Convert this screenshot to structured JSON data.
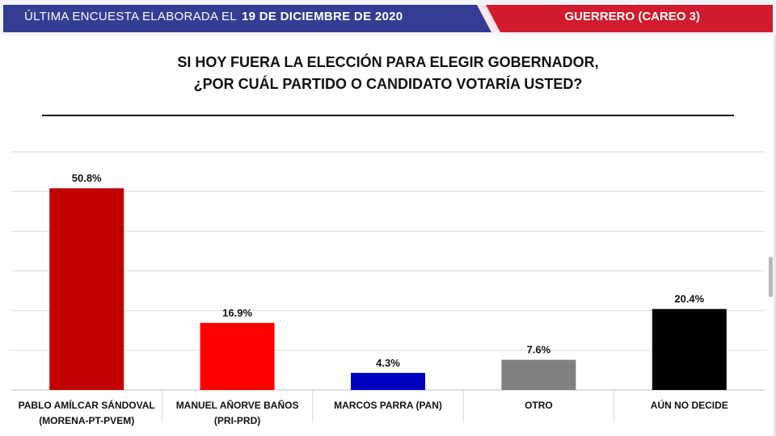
{
  "header": {
    "prefix": "ÚLTIMA ENCUESTA ELABORADA EL",
    "date": "19 DE DICIEMBRE DE 2020",
    "region": "GUERRERO (CAREO 3)",
    "colors": {
      "blue": "#343d94",
      "red": "#d21b2c"
    }
  },
  "title": {
    "line1": "SI HOY FUERA LA ELECCIÓN PARA ELEGIR GOBERNADOR,",
    "line2": "¿POR CUÁL PARTIDO O CANDIDATO VOTARÍA USTED?"
  },
  "chart_data": {
    "type": "bar",
    "categories": [
      [
        "PABLO AMÍLCAR SÁNDOVAL",
        "(MORENA-PT-PVEM)"
      ],
      [
        "MANUEL AÑORVE BAÑOS",
        "(PRI-PRD)"
      ],
      [
        "MARCOS PARRA (PAN)"
      ],
      [
        "OTRO"
      ],
      [
        "AÚN NO DECIDE"
      ]
    ],
    "values": [
      50.8,
      16.9,
      4.3,
      7.6,
      20.4
    ],
    "value_labels": [
      "50.8%",
      "16.9%",
      "4.3%",
      "7.6%",
      "20.4%"
    ],
    "colors": [
      "#c00000",
      "#ff0000",
      "#0000c0",
      "#808080",
      "#000000"
    ],
    "ylim": [
      0,
      60
    ],
    "grid": true,
    "legend": "none"
  }
}
